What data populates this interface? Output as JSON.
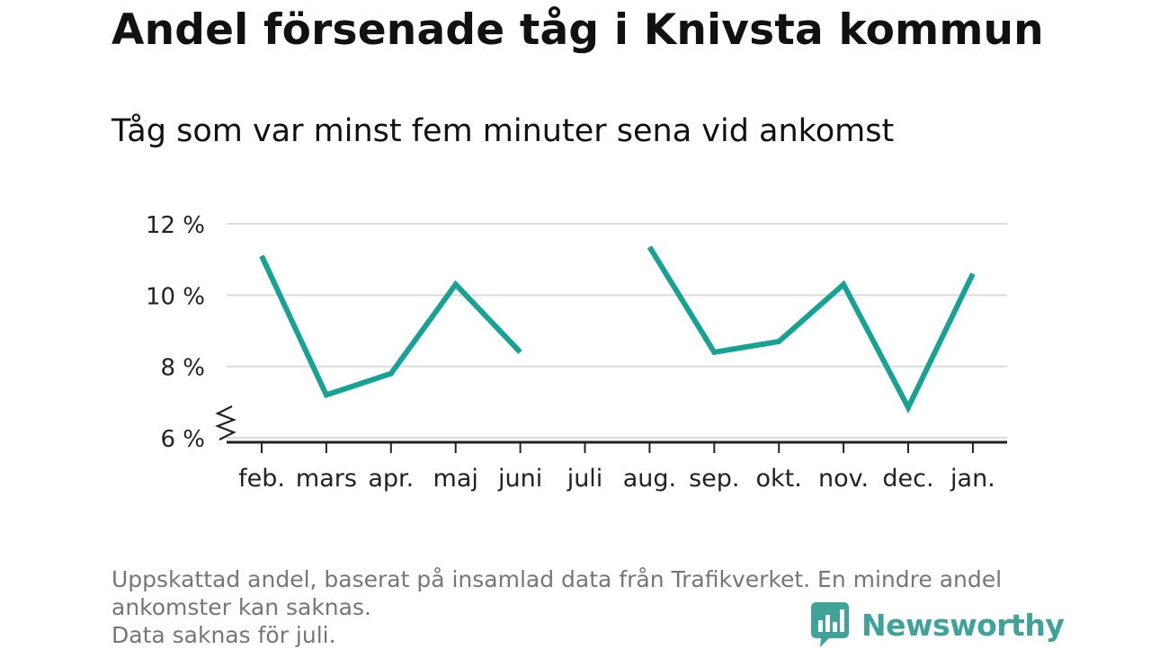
{
  "header": {
    "title": "Andel försenade tåg i Knivsta kommun",
    "subtitle": "Tåg som var minst fem minuter sena vid ankomst"
  },
  "footer": {
    "note_lines": [
      "Uppskattad andel, baserat på insamlad data från Trafikverket. En mindre andel",
      "ankomster kan saknas.",
      "Data saknas för juli."
    ],
    "brand": "Newsworthy"
  },
  "colors": {
    "line": "#16a394",
    "grid": "#dcdcdc",
    "axis": "#222222",
    "brand": "#3fa39a"
  },
  "chart_data": {
    "type": "line",
    "title": "Andel försenade tåg i Knivsta kommun",
    "subtitle": "Tåg som var minst fem minuter sena vid ankomst",
    "categories": [
      "feb.",
      "mars",
      "apr.",
      "maj",
      "juni",
      "juli",
      "aug.",
      "sep.",
      "okt.",
      "nov.",
      "dec.",
      "jan."
    ],
    "series": [
      {
        "values": [
          11.1,
          7.2,
          7.8,
          10.3,
          8.4,
          null,
          11.35,
          8.4,
          8.7,
          10.3,
          6.85,
          10.6
        ]
      }
    ],
    "ylim": [
      6,
      12
    ],
    "yticks": [
      6,
      8,
      10,
      12
    ],
    "ytick_labels": [
      "6 %",
      "8 %",
      "10 %",
      "12 %"
    ],
    "axis_break": true,
    "grid": true,
    "xlabel": "",
    "ylabel": ""
  }
}
